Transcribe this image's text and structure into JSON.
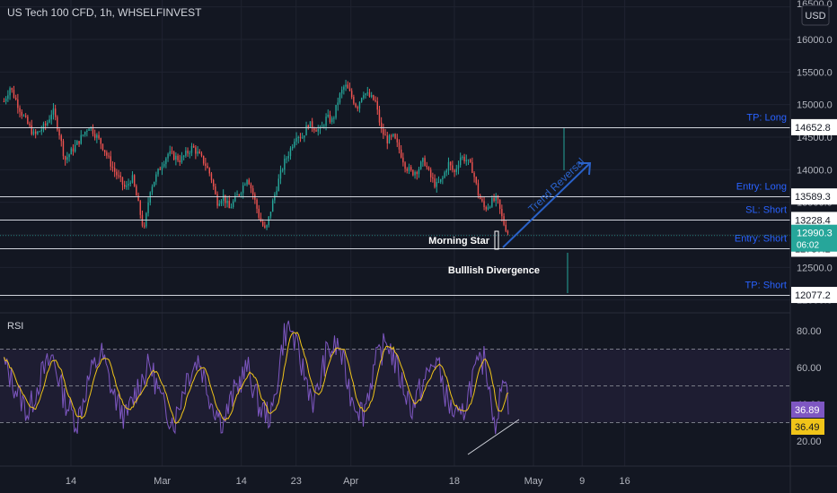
{
  "header": {
    "title": "US Tech 100 CFD, 1h, WHSELFINVEST",
    "currency": "USD"
  },
  "colors": {
    "background": "#131722",
    "grid": "#1f2330",
    "up": "#26a69a",
    "down": "#ef5350",
    "level_line": "#d1d4dc",
    "label_blue": "#2962ff",
    "arrow_blue": "#2a62c9",
    "rsi_line": "#7e57c2",
    "rsi_ma": "#f0c419",
    "rsi_band": "#7e57c2",
    "current_price": "#26a69a",
    "axis_text": "#b2b5be"
  },
  "chart_data": [
    {
      "type": "candlestick",
      "title": "US Tech 100 CFD, 1h, WHSELFINVEST",
      "y_axis": {
        "ticks": [
          "16500.0",
          "16000.0",
          "15500.0",
          "15000.0",
          "14500.0",
          "14000.0",
          "13500.0",
          "13000.0",
          "12500.0",
          "12000.0"
        ],
        "range": [
          11900,
          16550
        ]
      },
      "x_axis": {
        "ticks": [
          "14",
          "Mar",
          "14",
          "23",
          "Apr",
          "18",
          "May",
          "9",
          "16"
        ]
      },
      "price_path": [
        [
          "Feb 03",
          15050
        ],
        [
          "Feb 04",
          15270
        ],
        [
          "Feb 06",
          14850
        ],
        [
          "Feb 08",
          14520
        ],
        [
          "Feb 10",
          14700
        ],
        [
          "Feb 11",
          14920
        ],
        [
          "Feb 12",
          14600
        ],
        [
          "Feb 13",
          14150
        ],
        [
          "Feb 15",
          14400
        ],
        [
          "Feb 17",
          14680
        ],
        [
          "Feb 19",
          14400
        ],
        [
          "Feb 21",
          14000
        ],
        [
          "Feb 23",
          13700
        ],
        [
          "Feb 24",
          13900
        ],
        [
          "Feb 25",
          13500
        ],
        [
          "Feb 26",
          13050
        ],
        [
          "Feb 27",
          13700
        ],
        [
          "Feb 28",
          13900
        ],
        [
          "Mar 01",
          14100
        ],
        [
          "Mar 02",
          14250
        ],
        [
          "Mar 04",
          14150
        ],
        [
          "Mar 06",
          14350
        ],
        [
          "Mar 08",
          14100
        ],
        [
          "Mar 09",
          13900
        ],
        [
          "Mar 10",
          13500
        ],
        [
          "Mar 11",
          13600
        ],
        [
          "Mar 12",
          13400
        ],
        [
          "Mar 14",
          13700
        ],
        [
          "Mar 15",
          13900
        ],
        [
          "Mar 16",
          13600
        ],
        [
          "Mar 17",
          13250
        ],
        [
          "Mar 18",
          13050
        ],
        [
          "Mar 19",
          13450
        ],
        [
          "Mar 20",
          13800
        ],
        [
          "Mar 21",
          14100
        ],
        [
          "Mar 22",
          14300
        ],
        [
          "Mar 23",
          14550
        ],
        [
          "Mar 24",
          14500
        ],
        [
          "Mar 25",
          14700
        ],
        [
          "Mar 27",
          14600
        ],
        [
          "Mar 28",
          14800
        ],
        [
          "Mar 29",
          14750
        ],
        [
          "Mar 30",
          15100
        ],
        [
          "Mar 31",
          15300
        ],
        [
          "Apr 01",
          15150
        ],
        [
          "Apr 02",
          14950
        ],
        [
          "Apr 03",
          15200
        ],
        [
          "Apr 05",
          15050
        ],
        [
          "Apr 06",
          14600
        ],
        [
          "Apr 07",
          14450
        ],
        [
          "Apr 08",
          14500
        ],
        [
          "Apr 09",
          14300
        ],
        [
          "Apr 10",
          14050
        ],
        [
          "Apr 11",
          13950
        ],
        [
          "Apr 12",
          14000
        ],
        [
          "Apr 13",
          14150
        ],
        [
          "Apr 14",
          13900
        ],
        [
          "Apr 15",
          13750
        ],
        [
          "Apr 16",
          13850
        ],
        [
          "Apr 17",
          14100
        ],
        [
          "Apr 18",
          13950
        ],
        [
          "Apr 19",
          14200
        ],
        [
          "Apr 20",
          14150
        ],
        [
          "Apr 21",
          14000
        ],
        [
          "Apr 22",
          13600
        ],
        [
          "Apr 23",
          13400
        ],
        [
          "Apr 24",
          13500
        ],
        [
          "Apr 25",
          13550
        ],
        [
          "Apr 26",
          13200
        ],
        [
          "Apr 27",
          13000
        ]
      ],
      "levels": [
        {
          "name": "TP: Long",
          "value": 14652.8,
          "label": "14652.8",
          "has_name": true
        },
        {
          "name": "Entry: Long",
          "value": 13589.3,
          "label": "13589.3",
          "has_name": true
        },
        {
          "name": "SL: Short",
          "value": 13228.4,
          "label": "13228.4",
          "has_name": true
        },
        {
          "name": "Entry: Short",
          "value": 12787.2,
          "label": "12787.2",
          "has_name": true
        },
        {
          "name": "TP: Short",
          "value": 12077.2,
          "label": "12077.2",
          "has_name": true
        }
      ],
      "current_price": {
        "value": 12990.3,
        "label": "12990.3",
        "countdown": "06:02"
      },
      "annotations": {
        "morning_star": "Morning Star",
        "bullish_divergence": "Bulllish Divergence",
        "trend_reversal": "Trend Reversal"
      }
    },
    {
      "type": "line",
      "title": "RSI",
      "y_axis": {
        "ticks": [
          "80.00",
          "60.00",
          "40.00",
          "20.00"
        ],
        "range": [
          14,
          88
        ]
      },
      "band": [
        30,
        70
      ],
      "midline": 50,
      "series": [
        {
          "name": "RSI",
          "value_label": "36.89"
        },
        {
          "name": "RSI MA",
          "value_label": "36.49"
        }
      ],
      "rsi_path": [
        [
          "Feb 03",
          62
        ],
        [
          "Feb 05",
          48
        ],
        [
          "Feb 07",
          35
        ],
        [
          "Feb 09",
          55
        ],
        [
          "Feb 11",
          66
        ],
        [
          "Feb 13",
          42
        ],
        [
          "Feb 15",
          30
        ],
        [
          "Feb 17",
          55
        ],
        [
          "Feb 19",
          68
        ],
        [
          "Feb 21",
          45
        ],
        [
          "Feb 23",
          32
        ],
        [
          "Feb 25",
          50
        ],
        [
          "Feb 27",
          62
        ],
        [
          "Mar 01",
          40
        ],
        [
          "Mar 03",
          30
        ],
        [
          "Mar 05",
          55
        ],
        [
          "Mar 07",
          65
        ],
        [
          "Mar 09",
          42
        ],
        [
          "Mar 11",
          30
        ],
        [
          "Mar 13",
          48
        ],
        [
          "Mar 15",
          60
        ],
        [
          "Mar 17",
          38
        ],
        [
          "Mar 19",
          33
        ],
        [
          "Mar 21",
          78
        ],
        [
          "Mar 22",
          82
        ],
        [
          "Mar 24",
          60
        ],
        [
          "Mar 26",
          40
        ],
        [
          "Mar 28",
          68
        ],
        [
          "Mar 30",
          72
        ],
        [
          "Apr 01",
          45
        ],
        [
          "Apr 03",
          35
        ],
        [
          "Apr 05",
          62
        ],
        [
          "Apr 07",
          75
        ],
        [
          "Apr 09",
          55
        ],
        [
          "Apr 11",
          38
        ],
        [
          "Apr 13",
          52
        ],
        [
          "Apr 15",
          65
        ],
        [
          "Apr 17",
          40
        ],
        [
          "Apr 19",
          30
        ],
        [
          "Apr 21",
          55
        ],
        [
          "Apr 23",
          65
        ],
        [
          "Apr 24",
          45
        ],
        [
          "Apr 25",
          25
        ],
        [
          "Apr 26",
          62
        ],
        [
          "Apr 27",
          37
        ]
      ]
    }
  ]
}
